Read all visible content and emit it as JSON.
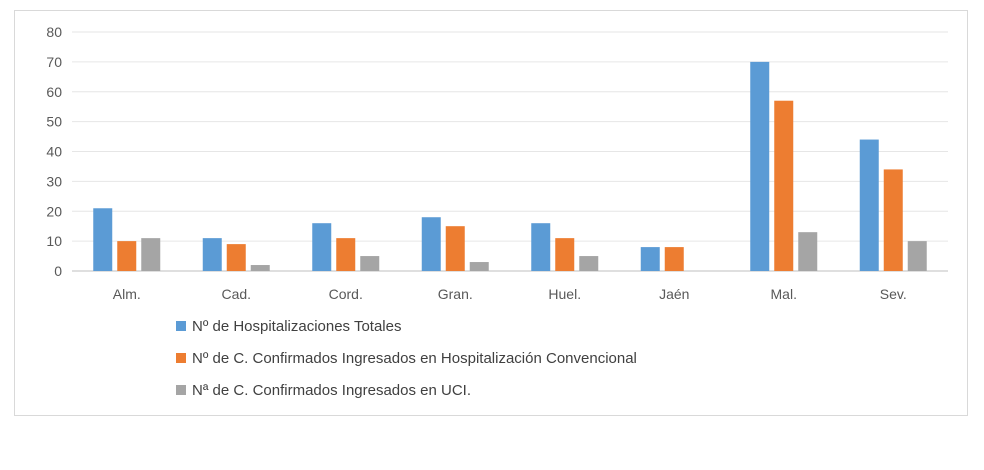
{
  "chart_data": {
    "type": "bar",
    "categories": [
      "Alm.",
      "Cad.",
      "Cord.",
      "Gran.",
      "Huel.",
      "Jaén",
      "Mal.",
      "Sev."
    ],
    "series": [
      {
        "name": "Nº de Hospitalizaciones Totales",
        "color": "#5b9bd5",
        "values": [
          21,
          11,
          16,
          18,
          16,
          8,
          70,
          44
        ]
      },
      {
        "name": "Nº de C. Confirmados Ingresados en Hospitalización Convencional",
        "color": "#ed7d31",
        "values": [
          10,
          9,
          11,
          15,
          11,
          8,
          57,
          34
        ]
      },
      {
        "name": "Nª de C. Confirmados Ingresados en UCI.",
        "color": "#a5a5a5",
        "values": [
          11,
          2,
          5,
          3,
          5,
          0,
          13,
          10
        ]
      }
    ],
    "yticks": [
      "0",
      "10",
      "20",
      "30",
      "40",
      "50",
      "60",
      "70",
      "80"
    ],
    "ylim": [
      0,
      80
    ],
    "grid": true,
    "legend_position": "bottom-left"
  }
}
